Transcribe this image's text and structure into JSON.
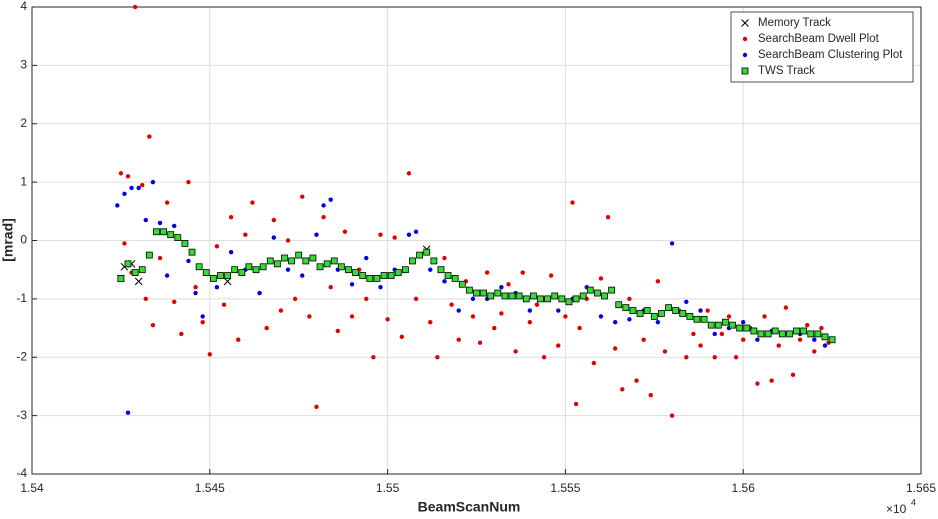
{
  "chart_data": {
    "type": "scatter",
    "xlabel": "BeamScanNum",
    "ylabel": "[mrad]",
    "x_multiplier": {
      "base": "×10",
      "exponent": "4"
    },
    "xlim": [
      15400,
      15650
    ],
    "xticks": [
      {
        "value": 15400,
        "label": "1.54"
      },
      {
        "value": 15450,
        "label": "1.545"
      },
      {
        "value": 15500,
        "label": "1.55"
      },
      {
        "value": 15550,
        "label": "1.555"
      },
      {
        "value": 15600,
        "label": "1.56"
      },
      {
        "value": 15650,
        "label": "1.565"
      }
    ],
    "ylim": [
      -4,
      4
    ],
    "yticks": [
      -4,
      -3,
      -2,
      -1,
      0,
      1,
      2,
      3,
      4
    ],
    "grid": true,
    "legend": "northeast",
    "series": [
      {
        "name": "Memory Track",
        "color": "#000000",
        "marker": "x",
        "x": [
          15425,
          15426,
          15428,
          15430,
          15455,
          15511
        ],
        "values": [
          -0.65,
          -0.45,
          -0.4,
          -0.7,
          -0.7,
          -0.15
        ]
      },
      {
        "name": "SearchBeam Dwell Plot",
        "color": "#e00000",
        "marker": "dot",
        "x": [
          15425,
          15427,
          15429,
          15431,
          15433,
          15426,
          15428,
          15432,
          15434,
          15436,
          15438,
          15440,
          15442,
          15444,
          15446,
          15448,
          15450,
          15452,
          15454,
          15456,
          15458,
          15460,
          15462,
          15464,
          15466,
          15468,
          15470,
          15472,
          15474,
          15476,
          15478,
          15480,
          15482,
          15484,
          15486,
          15488,
          15490,
          15492,
          15494,
          15496,
          15498,
          15500,
          15502,
          15504,
          15506,
          15508,
          15512,
          15514,
          15516,
          15518,
          15520,
          15522,
          15524,
          15526,
          15528,
          15530,
          15532,
          15534,
          15536,
          15538,
          15540,
          15542,
          15544,
          15546,
          15548,
          15550,
          15552,
          15553,
          15554,
          15556,
          15558,
          15560,
          15562,
          15564,
          15566,
          15568,
          15570,
          15572,
          15574,
          15576,
          15578,
          15580,
          15582,
          15584,
          15586,
          15588,
          15590,
          15592,
          15594,
          15596,
          15598,
          15600,
          15602,
          15604,
          15606,
          15608,
          15610,
          15612,
          15614,
          15616,
          15618,
          15620,
          15622,
          15624
        ],
        "values": [
          1.15,
          1.1,
          4.0,
          0.95,
          1.78,
          -0.05,
          -0.55,
          -1.0,
          -1.45,
          -0.3,
          0.65,
          -1.05,
          -1.6,
          1.0,
          -0.8,
          -1.4,
          -1.95,
          -0.1,
          -1.1,
          0.4,
          -1.7,
          0.1,
          0.65,
          -0.9,
          -1.5,
          0.35,
          -1.2,
          0.0,
          -1.0,
          0.75,
          -1.3,
          -2.85,
          0.4,
          -0.8,
          -1.55,
          0.15,
          -1.3,
          -0.5,
          -1.0,
          -2.0,
          0.1,
          -1.35,
          0.05,
          -1.65,
          1.15,
          -1.0,
          -1.4,
          -2.0,
          -0.3,
          -1.1,
          -1.7,
          -0.7,
          -1.3,
          -1.75,
          -0.55,
          -1.5,
          -1.25,
          -0.75,
          -1.9,
          -0.55,
          -1.4,
          -1.1,
          -2.0,
          -0.6,
          -1.8,
          -1.3,
          0.65,
          -2.8,
          -1.5,
          -1.0,
          -2.1,
          -0.65,
          0.4,
          -1.85,
          -2.55,
          -1.0,
          -2.4,
          -1.7,
          -2.65,
          -0.7,
          -1.9,
          -3.0,
          -1.2,
          -2.0,
          -1.6,
          -1.8,
          -1.2,
          -2.0,
          -1.6,
          -1.3,
          -2.0,
          -1.7,
          -1.5,
          -2.45,
          -1.3,
          -2.4,
          -1.8,
          -1.15,
          -2.3,
          -1.7,
          -1.45,
          -1.9,
          -1.5,
          -1.75
        ]
      },
      {
        "name": "SearchBeam Clustering Plot",
        "color": "#0000e0",
        "marker": "dot",
        "x": [
          15424,
          15426,
          15427,
          15428,
          15430,
          15432,
          15434,
          15436,
          15438,
          15440,
          15444,
          15446,
          15448,
          15452,
          15456,
          15460,
          15464,
          15468,
          15472,
          15476,
          15480,
          15482,
          15484,
          15486,
          15490,
          15494,
          15498,
          15502,
          15506,
          15508,
          15512,
          15516,
          15520,
          15524,
          15528,
          15532,
          15536,
          15540,
          15544,
          15548,
          15552,
          15556,
          15560,
          15564,
          15568,
          15572,
          15576,
          15580,
          15584,
          15588,
          15592,
          15596,
          15600,
          15604,
          15608,
          15612,
          15616,
          15620,
          15623
        ],
        "values": [
          0.6,
          0.8,
          -2.95,
          0.9,
          0.9,
          0.35,
          1.0,
          0.3,
          -0.6,
          0.25,
          -0.35,
          -0.9,
          -1.3,
          -0.8,
          -0.2,
          -0.5,
          -0.9,
          0.05,
          -0.5,
          -0.6,
          0.1,
          0.6,
          0.7,
          -0.5,
          -0.75,
          -0.3,
          -0.8,
          -0.5,
          0.1,
          0.15,
          -0.5,
          -0.7,
          -1.2,
          -1.0,
          -1.0,
          -0.8,
          -0.9,
          -1.2,
          -1.0,
          -1.2,
          -1.0,
          -0.8,
          -1.3,
          -1.4,
          -1.35,
          -1.2,
          -1.4,
          -0.05,
          -1.05,
          -1.2,
          -1.6,
          -1.5,
          -1.4,
          -1.7,
          -1.55,
          -1.6,
          -1.6,
          -1.7,
          -1.8
        ]
      },
      {
        "name": "TWS Track",
        "color": "#33dd33",
        "marker": "square",
        "x": [
          15425,
          15427,
          15429,
          15431,
          15433,
          15435,
          15437,
          15439,
          15441,
          15443,
          15445,
          15447,
          15449,
          15451,
          15453,
          15455,
          15457,
          15459,
          15461,
          15463,
          15465,
          15467,
          15469,
          15471,
          15473,
          15475,
          15477,
          15479,
          15481,
          15483,
          15485,
          15487,
          15489,
          15491,
          15493,
          15495,
          15497,
          15499,
          15501,
          15503,
          15505,
          15507,
          15509,
          15511,
          15513,
          15515,
          15517,
          15519,
          15521,
          15523,
          15525,
          15527,
          15529,
          15531,
          15533,
          15535,
          15537,
          15539,
          15541,
          15543,
          15545,
          15547,
          15549,
          15551,
          15553,
          15555,
          15557,
          15559,
          15561,
          15563,
          15565,
          15567,
          15569,
          15571,
          15573,
          15575,
          15577,
          15579,
          15581,
          15583,
          15585,
          15587,
          15589,
          15591,
          15593,
          15595,
          15597,
          15599,
          15601,
          15603,
          15605,
          15607,
          15609,
          15611,
          15613,
          15615,
          15617,
          15619,
          15621,
          15623,
          15625
        ],
        "values": [
          -0.65,
          -0.4,
          -0.55,
          -0.5,
          -0.25,
          0.15,
          0.15,
          0.1,
          0.05,
          -0.05,
          -0.2,
          -0.45,
          -0.55,
          -0.65,
          -0.6,
          -0.6,
          -0.5,
          -0.55,
          -0.45,
          -0.5,
          -0.45,
          -0.35,
          -0.4,
          -0.3,
          -0.35,
          -0.25,
          -0.35,
          -0.3,
          -0.45,
          -0.4,
          -0.35,
          -0.45,
          -0.5,
          -0.55,
          -0.6,
          -0.65,
          -0.65,
          -0.6,
          -0.6,
          -0.55,
          -0.5,
          -0.35,
          -0.25,
          -0.2,
          -0.35,
          -0.5,
          -0.6,
          -0.65,
          -0.75,
          -0.85,
          -0.9,
          -0.9,
          -0.95,
          -0.9,
          -0.95,
          -0.95,
          -0.95,
          -1.0,
          -0.95,
          -1.0,
          -1.0,
          -0.95,
          -1.0,
          -1.05,
          -1.0,
          -0.95,
          -0.85,
          -0.9,
          -0.95,
          -0.85,
          -1.1,
          -1.15,
          -1.2,
          -1.25,
          -1.2,
          -1.3,
          -1.25,
          -1.15,
          -1.2,
          -1.25,
          -1.3,
          -1.35,
          -1.35,
          -1.45,
          -1.45,
          -1.4,
          -1.45,
          -1.5,
          -1.5,
          -1.55,
          -1.6,
          -1.6,
          -1.55,
          -1.6,
          -1.6,
          -1.55,
          -1.55,
          -1.6,
          -1.6,
          -1.65,
          -1.7
        ]
      }
    ]
  }
}
